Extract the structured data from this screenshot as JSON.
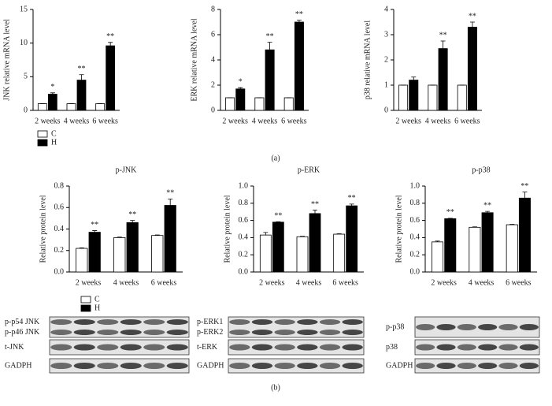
{
  "chart_data": [
    {
      "type": "bar",
      "ylabel": "JNK relative mRNA level",
      "categories": [
        "2 weeks",
        "4 weeks",
        "6 weeks"
      ],
      "series": [
        {
          "name": "C",
          "color": "#ffffff",
          "values": [
            1,
            1,
            1
          ],
          "errors": [
            0,
            0,
            0
          ]
        },
        {
          "name": "H",
          "color": "#000000",
          "values": [
            2.4,
            4.5,
            9.6
          ],
          "errors": [
            0.2,
            0.8,
            0.5
          ]
        }
      ],
      "annotations": [
        "*",
        "**",
        "**"
      ],
      "ylim": [
        0,
        15
      ],
      "yticks": [
        0,
        5,
        10,
        15
      ],
      "legend": true
    },
    {
      "type": "bar",
      "ylabel": "ERK relative mRNA level",
      "categories": [
        "2 weeks",
        "4 weeks",
        "6 weeks"
      ],
      "series": [
        {
          "color": "#ffffff",
          "values": [
            1,
            1,
            1
          ],
          "errors": [
            0,
            0,
            0
          ]
        },
        {
          "color": "#000000",
          "values": [
            1.7,
            4.8,
            7.0
          ],
          "errors": [
            0.1,
            0.6,
            0.15
          ]
        }
      ],
      "annotations": [
        "*",
        "**",
        "**"
      ],
      "ylim": [
        0,
        8
      ],
      "yticks": [
        0,
        2,
        4,
        6,
        8
      ],
      "legend": false
    },
    {
      "type": "bar",
      "ylabel": "p38 relative mRNA level",
      "categories": [
        "2 weeks",
        "4 weeks",
        "6 weeks"
      ],
      "series": [
        {
          "color": "#ffffff",
          "values": [
            1,
            1,
            1
          ],
          "errors": [
            0,
            0,
            0
          ]
        },
        {
          "color": "#000000",
          "values": [
            1.2,
            2.45,
            3.3
          ],
          "errors": [
            0.12,
            0.3,
            0.2
          ]
        }
      ],
      "annotations": [
        null,
        "**",
        "**"
      ],
      "ylim": [
        0,
        4
      ],
      "yticks": [
        0,
        1,
        2,
        3,
        4
      ],
      "legend": false
    },
    {
      "type": "bar",
      "title": "p-JNK",
      "ylabel": "Relative protein level",
      "categories": [
        "2 weeks",
        "4 weeks",
        "6 weeks"
      ],
      "series": [
        {
          "name": "C",
          "color": "#ffffff",
          "values": [
            0.22,
            0.32,
            0.34
          ],
          "errors": [
            0.005,
            0.005,
            0.005
          ]
        },
        {
          "name": "H",
          "color": "#000000",
          "values": [
            0.37,
            0.46,
            0.62
          ],
          "errors": [
            0.015,
            0.02,
            0.06
          ]
        }
      ],
      "annotations": [
        "**",
        "**",
        "**"
      ],
      "ylim": [
        0,
        0.8
      ],
      "yticks": [
        {
          "value": 0,
          "label": "0.0"
        },
        0.2,
        0.4,
        0.6,
        0.8
      ],
      "legend": true
    },
    {
      "type": "bar",
      "title": "p-ERK",
      "ylabel": "Relative protein level",
      "categories": [
        "2 weeks",
        "4 weeks",
        "6 weeks"
      ],
      "series": [
        {
          "color": "#ffffff",
          "values": [
            0.43,
            0.41,
            0.44
          ],
          "errors": [
            0.03,
            0.005,
            0.005
          ]
        },
        {
          "color": "#000000",
          "values": [
            0.58,
            0.68,
            0.77
          ],
          "errors": [
            0.005,
            0.04,
            0.02
          ]
        }
      ],
      "annotations": [
        "**",
        "**",
        "**"
      ],
      "ylim": [
        0,
        1
      ],
      "yticks": [
        {
          "value": 0,
          "label": "0.0"
        },
        0.2,
        0.4,
        0.6,
        0.8,
        {
          "value": 1,
          "label": "1.0"
        }
      ],
      "legend": false
    },
    {
      "type": "bar",
      "title": "p-p38",
      "ylabel": "Relative protein level",
      "categories": [
        "2 weeks",
        "4 weeks",
        "6 weeks"
      ],
      "series": [
        {
          "color": "#ffffff",
          "values": [
            0.35,
            0.52,
            0.55
          ],
          "errors": [
            0.01,
            0.005,
            0.005
          ]
        },
        {
          "color": "#000000",
          "values": [
            0.62,
            0.69,
            0.86
          ],
          "errors": [
            0.005,
            0.015,
            0.07
          ]
        }
      ],
      "annotations": [
        "**",
        "**",
        "**"
      ],
      "ylim": [
        0,
        1
      ],
      "yticks": [
        {
          "value": 0,
          "label": "0.0"
        },
        0.2,
        0.4,
        0.6,
        0.8,
        {
          "value": 1,
          "label": "1.0"
        }
      ],
      "legend": false
    }
  ],
  "panel_labels": [
    "(a)",
    "(b)"
  ],
  "blots": [
    {
      "rows": [
        {
          "labels": [
            "p-p54 JNK",
            "p-p46 JNK"
          ]
        },
        {
          "labels": [
            "t-JNK"
          ]
        },
        {
          "labels": [
            "GADPH"
          ]
        }
      ]
    },
    {
      "rows": [
        {
          "labels": [
            "p-ERK1",
            "p-ERK2"
          ]
        },
        {
          "labels": [
            "t-ERK"
          ]
        },
        {
          "labels": [
            "GADPH"
          ]
        }
      ]
    },
    {
      "rows": [
        {
          "labels": [
            "p-p38"
          ]
        },
        {
          "labels": [
            "p38"
          ]
        },
        {
          "labels": [
            "GADPH"
          ]
        }
      ]
    }
  ]
}
